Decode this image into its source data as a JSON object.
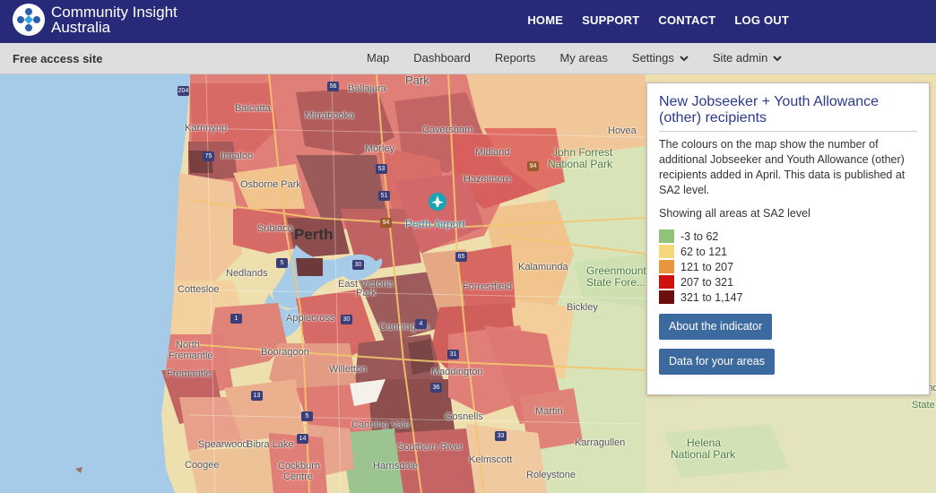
{
  "header": {
    "brand_line1": "Community Insight",
    "brand_line2": "Australia",
    "nav": [
      "HOME",
      "SUPPORT",
      "CONTACT",
      "LOG OUT"
    ]
  },
  "subheader": {
    "site_label": "Free access site",
    "nav": [
      "Map",
      "Dashboard",
      "Reports",
      "My areas",
      "Settings",
      "Site admin"
    ]
  },
  "map": {
    "labels": {
      "park": "Park",
      "ballajura": "Ballajura",
      "balcatta": "Balcatta",
      "mirrabooka": "Mirrabooka",
      "karrinyup": "Karrinyup",
      "caversham": "Caversham",
      "hovea": "Hovea",
      "innaloo": "Innaloo",
      "morley": "Morley",
      "midland": "Midland",
      "john_forrest": "John Forrest",
      "national_park": "National Park",
      "osborne_park": "Osborne Park",
      "hazelmere": "Hazelmere",
      "perth": "Perth",
      "perth_airport": "Perth Airport",
      "subiaco": "Subiaco",
      "nedlands": "Nedlands",
      "kalamunda": "Kalamunda",
      "greenmount": "Greenmount",
      "state_forest": "State Fore...",
      "cottesloe": "Cottesloe",
      "east_victoria": "East Victoria",
      "east_victoria_park": "Park",
      "forrestfield": "Forrestfield",
      "applecross": "Applecross",
      "bickley": "Bickley",
      "north": "North",
      "fremantle_n": "Fremantle",
      "booragoon": "Booragoon",
      "cannington": "Cannington",
      "fremantle": "Fremantle",
      "willetton": "Willetton",
      "maddington": "Maddington",
      "canning_vale": "Canning Vale",
      "gosnells": "Gosnells",
      "martin": "Martin",
      "spearwood": "Spearwood",
      "bibra_lake": "Bibra Lake",
      "southern_river": "Southern River",
      "karragullen": "Karragullen",
      "helena": "Helena",
      "helena_np": "National Park",
      "coogee": "Coogee",
      "cockburn": "Cockburn",
      "centre": "Centre",
      "harrisdale": "Harrisdale",
      "kelmscott": "Kelmscott",
      "roleystone": "Roleystone",
      "mund": "Mund",
      "state": "State"
    },
    "shields": [
      "204",
      "56",
      "75",
      "51",
      "53",
      "94",
      "94",
      "30",
      "65",
      "5",
      "1",
      "30",
      "4",
      "13",
      "36",
      "33",
      "14",
      "5",
      "31"
    ]
  },
  "panel": {
    "title": "New Jobseeker + Youth Allowance (other) recipients",
    "description": "The colours on the map show the number of additional Jobseeker and Youth Allowance (other) recipients added in April. This data is published at SA2 level.",
    "showing": "Showing all areas at SA2 level",
    "legend": [
      {
        "label": "-3 to 62",
        "color": "#8fc27a"
      },
      {
        "label": "62 to 121",
        "color": "#f6d77a"
      },
      {
        "label": "121 to 207",
        "color": "#e8953e"
      },
      {
        "label": "207 to 321",
        "color": "#d0110f"
      },
      {
        "label": "321 to 1,147",
        "color": "#6e0d0d"
      }
    ],
    "buttons": [
      "About the indicator",
      "Data for your areas"
    ]
  }
}
